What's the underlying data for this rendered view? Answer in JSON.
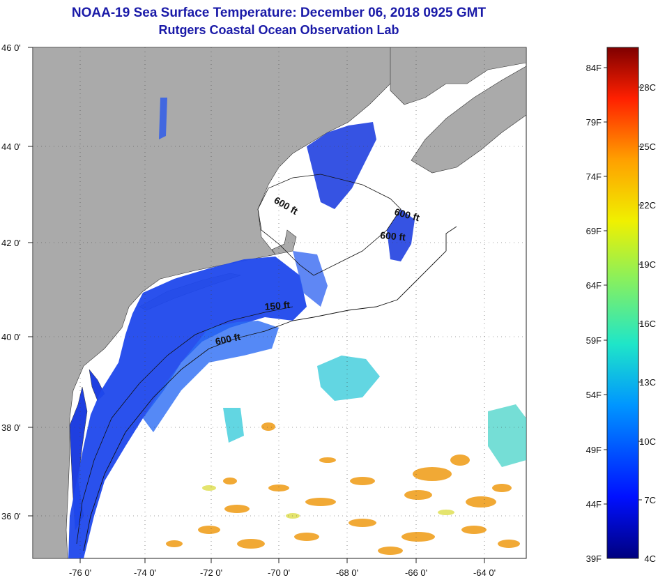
{
  "title": {
    "line1": "NOAA-19 Sea Surface Temperature:  December 06, 2018 0925 GMT",
    "line2": "Rutgers Coastal Ocean Observation Lab"
  },
  "map": {
    "lat_ticks": [
      "46 0'",
      "44 0'",
      "42 0'",
      "40 0'",
      "38 0'",
      "36 0'"
    ],
    "lon_ticks": [
      "-76 0'",
      "-74 0'",
      "-72 0'",
      "-70 0'",
      "-68 0'",
      "-66 0'",
      "-64 0'"
    ],
    "isobath_labels": [
      "600 ft",
      "600 ft",
      "600 ft",
      "150 ft",
      "600 ft"
    ],
    "land_color": "#aaaaaa",
    "cold_color": "#1f3fe0"
  },
  "colorbar": {
    "fahrenheit": [
      "84F",
      "79F",
      "74F",
      "69F",
      "64F",
      "59F",
      "54F",
      "49F",
      "44F",
      "39F"
    ],
    "celsius": [
      "28C",
      "25C",
      "22C",
      "19C",
      "16C",
      "13C",
      "10C",
      "7C",
      "4C"
    ]
  }
}
